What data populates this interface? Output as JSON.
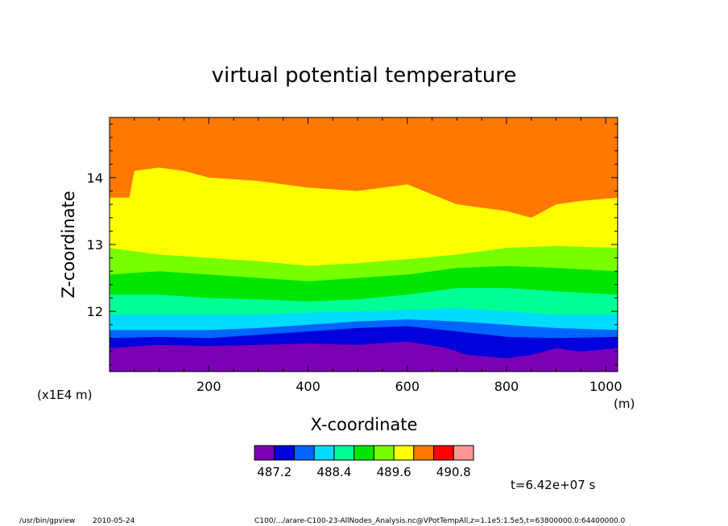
{
  "chart_data": {
    "type": "heatmap",
    "title": "virtual potential temperature",
    "xlabel": "X-coordinate",
    "ylabel": "Z-coordinate",
    "x_unit": "(m)",
    "y_unit": "(x1E4 m)",
    "xlim": [
      0,
      1024
    ],
    "ylim": [
      11.1,
      14.9
    ],
    "x_ticks": [
      "200",
      "400",
      "600",
      "800",
      "1000"
    ],
    "y_ticks": [
      "12",
      "13",
      "14"
    ],
    "color_levels": [
      "#7b00b4",
      "#0000dc",
      "#0064ff",
      "#00dcff",
      "#00ff96",
      "#00e600",
      "#78ff00",
      "#ffff00",
      "#ff7800",
      "#ff0000",
      "#ff9696"
    ],
    "colorbar_ticks": [
      "487.2",
      "488.4",
      "489.6",
      "490.8"
    ],
    "band_boundaries": [
      {
        "from": "#7b00b4",
        "to": "#0000dc",
        "x": [
          0,
          100,
          200,
          300,
          400,
          500,
          600,
          680,
          720,
          800,
          850,
          900,
          950,
          1024
        ],
        "z": [
          11.45,
          11.5,
          11.48,
          11.5,
          11.52,
          11.5,
          11.55,
          11.45,
          11.35,
          11.3,
          11.35,
          11.45,
          11.4,
          11.45
        ]
      },
      {
        "from": "#0000dc",
        "to": "#0064ff",
        "x": [
          0,
          100,
          200,
          300,
          400,
          500,
          600,
          700,
          800,
          900,
          1024
        ],
        "z": [
          11.6,
          11.62,
          11.6,
          11.65,
          11.7,
          11.75,
          11.78,
          11.7,
          11.62,
          11.6,
          11.62
        ]
      },
      {
        "from": "#0064ff",
        "to": "#00dcff",
        "x": [
          0,
          100,
          200,
          300,
          400,
          500,
          600,
          700,
          800,
          900,
          1024
        ],
        "z": [
          11.72,
          11.72,
          11.72,
          11.75,
          11.8,
          11.85,
          11.88,
          11.85,
          11.8,
          11.75,
          11.72
        ]
      },
      {
        "from": "#00dcff",
        "to": "#00ff96",
        "x": [
          0,
          100,
          200,
          300,
          400,
          500,
          600,
          700,
          800,
          900,
          1024
        ],
        "z": [
          11.95,
          11.95,
          11.95,
          11.95,
          11.98,
          12.0,
          12.02,
          12.05,
          12.0,
          11.95,
          11.95
        ]
      },
      {
        "from": "#00ff96",
        "to": "#00e600",
        "x": [
          0,
          100,
          200,
          300,
          400,
          500,
          600,
          700,
          800,
          900,
          1024
        ],
        "z": [
          12.25,
          12.25,
          12.2,
          12.18,
          12.15,
          12.18,
          12.25,
          12.35,
          12.35,
          12.3,
          12.25
        ]
      },
      {
        "from": "#00e600",
        "to": "#78ff00",
        "x": [
          0,
          100,
          200,
          300,
          400,
          500,
          600,
          700,
          800,
          900,
          1024
        ],
        "z": [
          12.55,
          12.6,
          12.55,
          12.5,
          12.45,
          12.5,
          12.55,
          12.65,
          12.68,
          12.65,
          12.6
        ]
      },
      {
        "from": "#78ff00",
        "to": "#ffff00",
        "x": [
          0,
          100,
          200,
          300,
          400,
          500,
          600,
          700,
          800,
          900,
          1024
        ],
        "z": [
          12.95,
          12.85,
          12.8,
          12.75,
          12.68,
          12.72,
          12.78,
          12.85,
          12.95,
          12.98,
          12.95
        ]
      },
      {
        "from": "#ffff00",
        "to": "#ff7800",
        "x": [
          0,
          40,
          50,
          100,
          150,
          200,
          300,
          400,
          500,
          600,
          700,
          750,
          800,
          850,
          900,
          950,
          1024
        ],
        "z": [
          13.7,
          13.7,
          14.1,
          14.15,
          14.1,
          14.0,
          13.95,
          13.85,
          13.8,
          13.9,
          13.6,
          13.55,
          13.5,
          13.4,
          13.6,
          13.65,
          13.7
        ]
      }
    ]
  },
  "footer": {
    "time_label": "t=6.42e+07 s",
    "program": "/usr/bin/gpview",
    "date": "2010-05-24",
    "command": "C100/.../arare-C100-23-AllNodes_Analysis.nc@VPotTempAll,z=1.1e5:1.5e5,t=63800000.0:64400000.0"
  }
}
